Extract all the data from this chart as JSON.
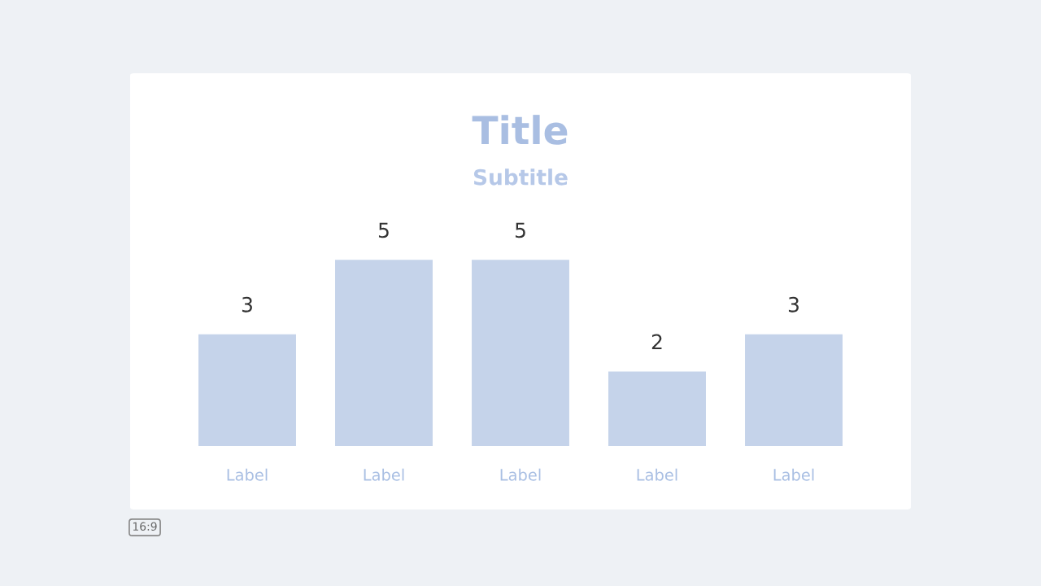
{
  "chart_data": {
    "type": "bar",
    "title": "Title",
    "subtitle": "Subtitle",
    "categories": [
      "Label",
      "Label",
      "Label",
      "Label",
      "Label"
    ],
    "values": [
      3,
      5,
      5,
      2,
      3
    ],
    "color": "#c5d3ea",
    "data_labels": true,
    "annotations": [
      "16:9"
    ]
  }
}
